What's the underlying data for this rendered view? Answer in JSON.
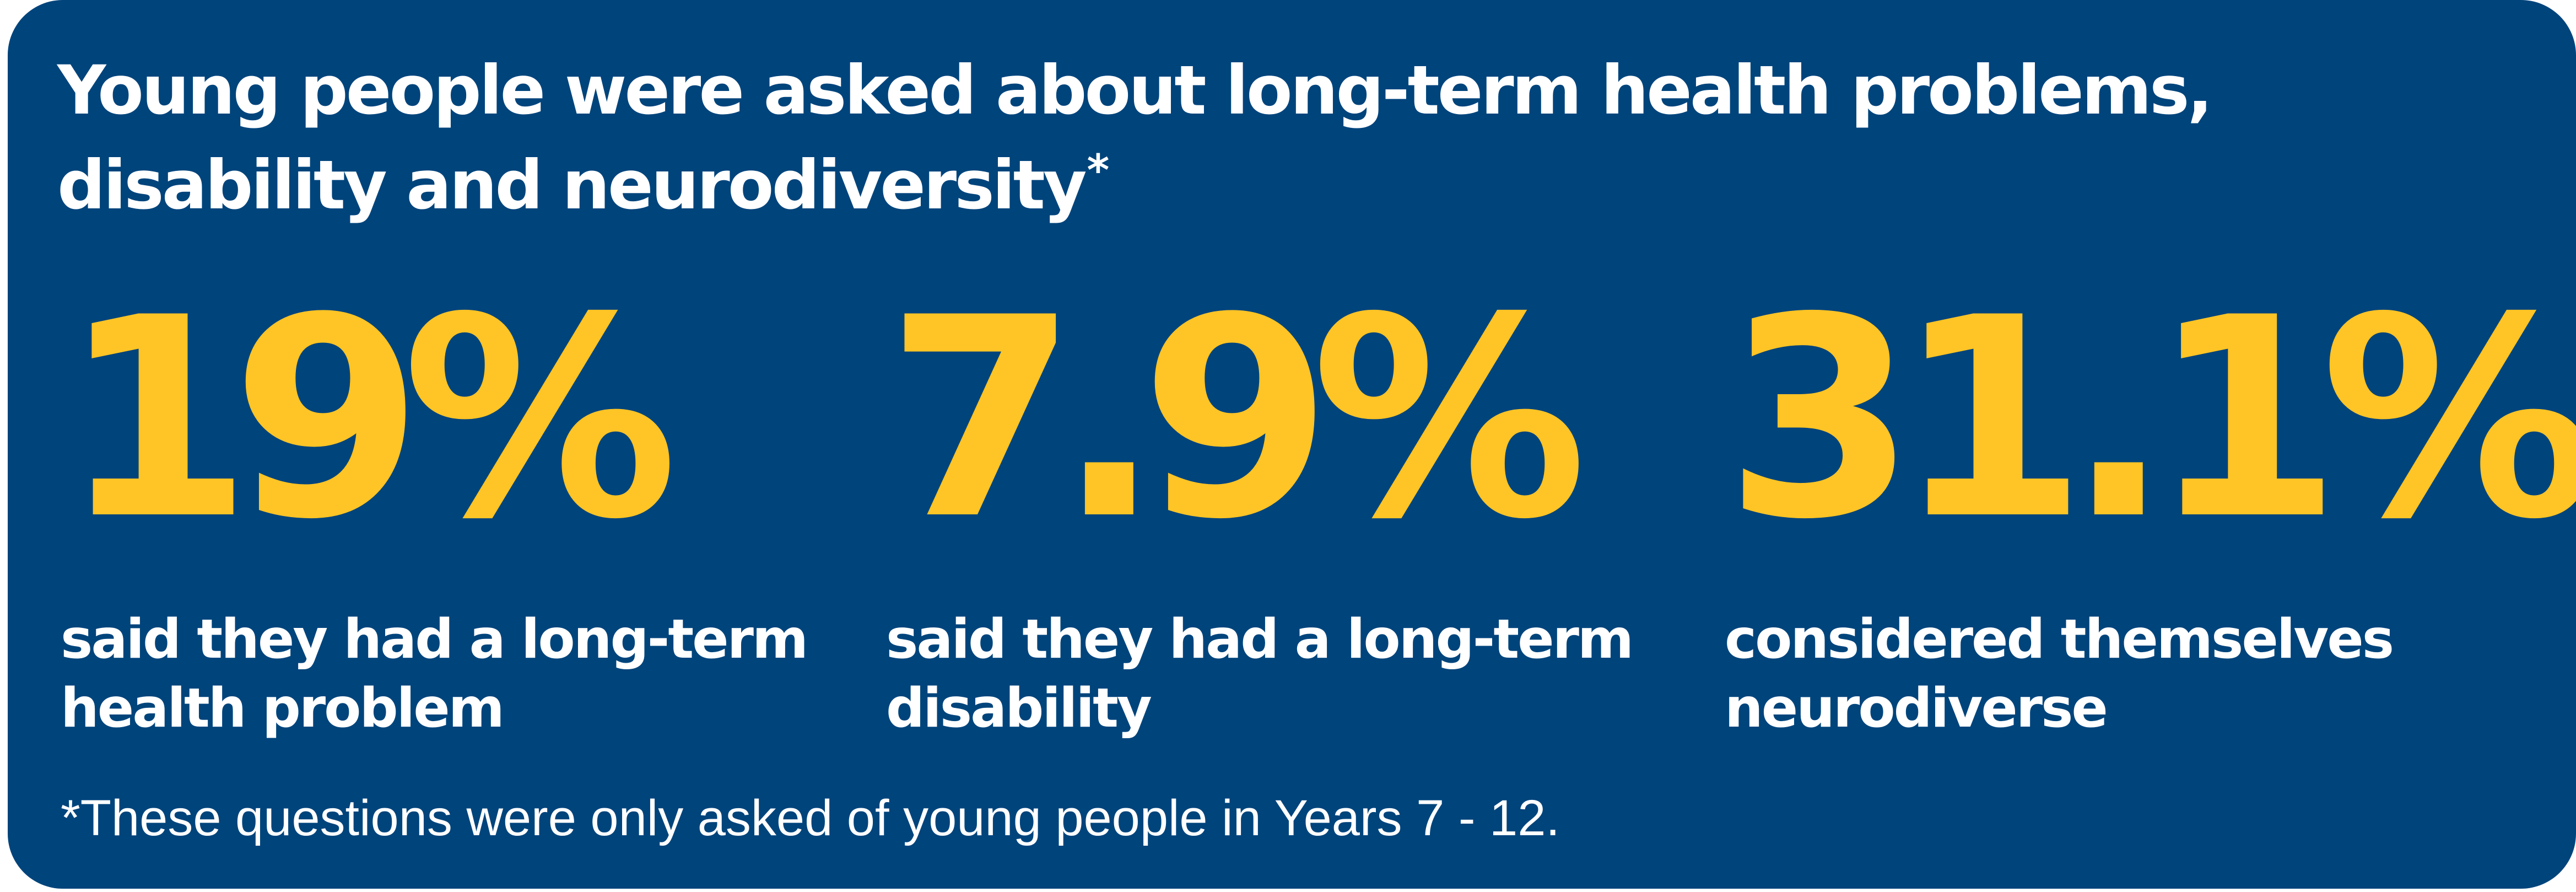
{
  "heading": {
    "text": "Young people were asked about long-term health problems, disability and neurodiversity",
    "marker": "*"
  },
  "stats": [
    {
      "value": "19%",
      "caption": "said they had a long-term health problem"
    },
    {
      "value": "7.9%",
      "caption": "said they had a long-term disability"
    },
    {
      "value": "31.1%",
      "caption": "considered themselves neurodiverse"
    }
  ],
  "footnote": "*These questions were only asked of young people in Years 7 - 12.",
  "colors": {
    "background": "#00447c",
    "accent": "#ffc425",
    "text": "#ffffff"
  }
}
